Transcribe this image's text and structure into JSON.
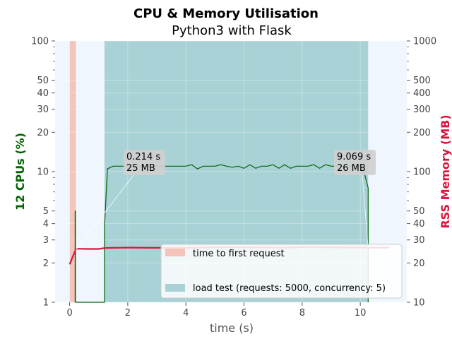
{
  "chart_data": {
    "type": "line",
    "title": "CPU & Memory Utilisation",
    "subtitle": "Python3 with Flask",
    "xlabel": "time (s)",
    "ylabel_left": "12 CPUs (%)",
    "ylabel_right": "RSS Memory (MB)",
    "xlim": [
      -0.5,
      11.6
    ],
    "ylim_left": [
      1,
      100
    ],
    "ylim_right": [
      10,
      1000
    ],
    "y_scale": "log",
    "x_ticks": [
      "0",
      "2",
      "4",
      "6",
      "8",
      "10"
    ],
    "y_left_ticks": [
      "1",
      "2",
      "3",
      "4",
      "5",
      "10",
      "20",
      "30",
      "40",
      "50",
      "100"
    ],
    "y_right_ticks": [
      "10",
      "20",
      "30",
      "40",
      "50",
      "100",
      "200",
      "300",
      "400",
      "500",
      "1000"
    ],
    "grid": true,
    "legend_position": "lower-right",
    "colors": {
      "cpu": "#006400",
      "memory": "#dc143c",
      "first_request_band": "#f4c4ba",
      "load_test_band": "#a8d2d6",
      "plot_bg": "#f0f6fe",
      "ylabel_left": "#006400",
      "ylabel_right": "#dc143c"
    },
    "bands": [
      {
        "name": "time to first request",
        "x0": 0.0,
        "x1": 0.214
      },
      {
        "name": "load test (requests: 5000, concurrency: 5)",
        "x0": 1.2,
        "x1": 10.27
      }
    ],
    "series": [
      {
        "name": "CPU",
        "axis": "left",
        "x": [
          0.19,
          0.19,
          0.2,
          0.2,
          1.2,
          1.2,
          1.3,
          1.5,
          1.8,
          2.0,
          2.5,
          3.0,
          3.5,
          4.0,
          4.2,
          4.4,
          4.6,
          4.8,
          5.0,
          5.2,
          5.4,
          5.6,
          5.8,
          6.0,
          6.2,
          6.4,
          6.6,
          6.8,
          7.0,
          7.2,
          7.4,
          7.6,
          7.8,
          8.0,
          8.2,
          8.4,
          8.6,
          8.8,
          9.0,
          9.2,
          9.4,
          9.6,
          9.8,
          10.0,
          10.1,
          10.27,
          10.27
        ],
        "values": [
          1,
          5,
          5,
          1,
          1,
          3.8,
          10.5,
          11,
          11,
          11,
          11,
          11,
          11,
          11,
          11.3,
          10.5,
          11,
          11,
          11,
          11.3,
          11,
          10.8,
          11,
          10.6,
          11.3,
          10.6,
          11,
          11,
          11.3,
          10.6,
          11.3,
          10.6,
          11,
          11,
          11,
          11.3,
          10.6,
          11.3,
          11,
          11,
          11,
          11,
          11,
          11,
          10.5,
          7.5,
          1
        ]
      },
      {
        "name": "Memory",
        "axis": "right",
        "x": [
          0.0,
          0.214,
          0.3,
          0.6,
          1.0,
          1.2,
          1.5,
          2.0,
          3.0,
          4.0,
          5.0,
          6.0,
          7.0,
          7.5,
          8.0,
          9.0,
          10.0,
          11.0
        ],
        "values": [
          19.5,
          25.5,
          25.7,
          25.6,
          25.6,
          26.0,
          26.1,
          26.2,
          26.1,
          26.1,
          26.3,
          26.3,
          26.2,
          26.2,
          26.4,
          26.3,
          26.2,
          26.2
        ]
      }
    ],
    "annotations": [
      {
        "line1": "0.214 s",
        "line2": "25 MB",
        "x": 0.214,
        "y": 25
      },
      {
        "line1": "9.069 s",
        "line2": "26 MB",
        "x": 10.27,
        "y": 26
      }
    ]
  }
}
